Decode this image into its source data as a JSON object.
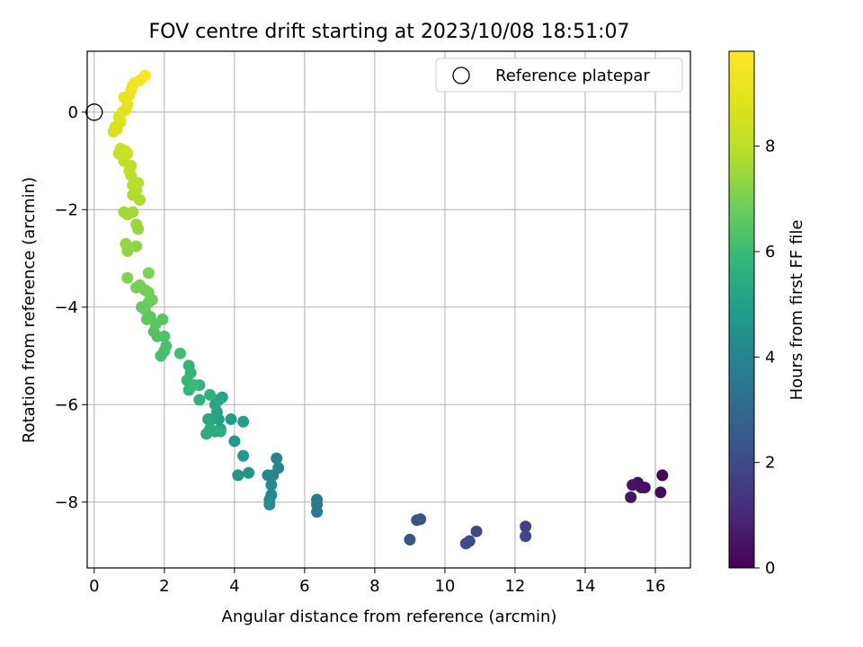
{
  "chart_data": {
    "type": "scatter",
    "title": "FOV centre drift starting at 2023/10/08 18:51:07",
    "xlabel": "Angular distance from reference (arcmin)",
    "ylabel": "Rotation from reference (arcmin)",
    "xlim": [
      -0.2,
      17
    ],
    "ylim": [
      -9.35,
      1.25
    ],
    "x_ticks": [
      0,
      2,
      4,
      6,
      8,
      10,
      12,
      14,
      16
    ],
    "y_ticks": [
      0,
      -2,
      -4,
      -6,
      -8
    ],
    "x_tick_labels": [
      "0",
      "2",
      "4",
      "6",
      "8",
      "10",
      "12",
      "14",
      "16"
    ],
    "y_tick_labels": [
      "0",
      "−2",
      "−4",
      "−6",
      "−8"
    ],
    "grid": true,
    "legend_position": "top-right",
    "legend": {
      "label": "Reference platepar",
      "marker": "open-circle"
    },
    "reference_point": {
      "x": 0,
      "y": 0
    },
    "colorbar": {
      "label": "Hours from first FF file",
      "colormap": "viridis",
      "range": [
        0,
        9.8
      ],
      "ticks": [
        0,
        2,
        4,
        6,
        8
      ],
      "tick_labels": [
        "0",
        "2",
        "4",
        "6",
        "8"
      ]
    },
    "points": [
      [
        16.2,
        -7.45,
        0.1
      ],
      [
        16.15,
        -7.8,
        0.25
      ],
      [
        15.5,
        -7.6,
        0.3
      ],
      [
        15.7,
        -7.7,
        0.35
      ],
      [
        15.6,
        -7.7,
        0.4
      ],
      [
        15.35,
        -7.65,
        0.45
      ],
      [
        15.3,
        -7.9,
        0.5
      ],
      [
        12.3,
        -8.5,
        1.8
      ],
      [
        12.3,
        -8.7,
        1.85
      ],
      [
        10.9,
        -8.6,
        1.95
      ],
      [
        10.7,
        -8.8,
        2.0
      ],
      [
        10.6,
        -8.85,
        2.05
      ],
      [
        9.3,
        -8.35,
        2.25
      ],
      [
        9.2,
        -8.37,
        2.3
      ],
      [
        9.0,
        -8.77,
        2.35
      ],
      [
        6.35,
        -7.95,
        3.5
      ],
      [
        6.35,
        -8.05,
        3.55
      ],
      [
        6.35,
        -8.2,
        3.6
      ],
      [
        5.2,
        -7.1,
        4.0
      ],
      [
        5.25,
        -7.3,
        4.05
      ],
      [
        5.1,
        -7.45,
        4.1
      ],
      [
        4.95,
        -7.45,
        4.15
      ],
      [
        5.05,
        -7.65,
        4.2
      ],
      [
        5.05,
        -7.85,
        4.25
      ],
      [
        5.0,
        -7.95,
        4.3
      ],
      [
        5.0,
        -8.05,
        4.35
      ],
      [
        4.4,
        -7.4,
        4.55
      ],
      [
        4.1,
        -7.45,
        4.6
      ],
      [
        4.25,
        -7.05,
        4.7
      ],
      [
        4.0,
        -6.75,
        4.8
      ],
      [
        4.25,
        -6.35,
        4.9
      ],
      [
        3.9,
        -6.3,
        4.95
      ],
      [
        3.6,
        -6.5,
        5.0
      ],
      [
        3.55,
        -6.3,
        5.05
      ],
      [
        3.5,
        -6.15,
        5.1
      ],
      [
        3.65,
        -5.85,
        5.15
      ],
      [
        3.55,
        -5.9,
        5.2
      ],
      [
        3.45,
        -6.0,
        5.25
      ],
      [
        3.35,
        -6.3,
        5.3
      ],
      [
        3.25,
        -6.3,
        5.35
      ],
      [
        3.45,
        -6.55,
        5.4
      ],
      [
        3.3,
        -6.5,
        5.45
      ],
      [
        3.2,
        -6.6,
        5.5
      ],
      [
        3.6,
        -6.55,
        5.55
      ],
      [
        3.3,
        -5.8,
        5.6
      ],
      [
        3.0,
        -5.9,
        5.65
      ],
      [
        3.0,
        -5.6,
        5.7
      ],
      [
        2.75,
        -5.35,
        5.75
      ],
      [
        2.7,
        -5.2,
        5.8
      ],
      [
        2.65,
        -5.5,
        5.85
      ],
      [
        2.7,
        -5.7,
        5.9
      ],
      [
        2.85,
        -5.6,
        5.95
      ],
      [
        2.45,
        -4.95,
        6.1
      ],
      [
        2.0,
        -4.9,
        6.15
      ],
      [
        1.9,
        -5.0,
        6.2
      ],
      [
        2.05,
        -4.8,
        6.25
      ],
      [
        2.0,
        -4.6,
        6.3
      ],
      [
        1.8,
        -4.6,
        6.35
      ],
      [
        1.7,
        -4.5,
        6.4
      ],
      [
        1.95,
        -4.25,
        6.45
      ],
      [
        1.6,
        -4.2,
        6.5
      ],
      [
        1.75,
        -4.35,
        6.55
      ],
      [
        1.5,
        -4.25,
        6.6
      ],
      [
        1.45,
        -4.05,
        6.65
      ],
      [
        1.35,
        -4.0,
        6.7
      ],
      [
        1.55,
        -3.9,
        6.75
      ],
      [
        1.65,
        -3.85,
        6.8
      ],
      [
        1.55,
        -3.7,
        6.85
      ],
      [
        1.45,
        -3.65,
        6.9
      ],
      [
        1.2,
        -3.6,
        6.95
      ],
      [
        1.3,
        -3.55,
        7.0
      ],
      [
        1.55,
        -3.3,
        7.05
      ],
      [
        0.95,
        -3.4,
        7.1
      ],
      [
        1.2,
        -2.75,
        7.3
      ],
      [
        0.95,
        -2.85,
        7.35
      ],
      [
        0.9,
        -2.7,
        7.4
      ],
      [
        1.25,
        -2.4,
        7.45
      ],
      [
        1.2,
        -2.3,
        7.5
      ],
      [
        0.95,
        -2.1,
        7.55
      ],
      [
        0.85,
        -2.05,
        7.6
      ],
      [
        1.1,
        -2.05,
        7.65
      ],
      [
        1.3,
        -1.8,
        7.7
      ],
      [
        1.1,
        -1.7,
        7.75
      ],
      [
        1.2,
        -1.6,
        7.8
      ],
      [
        1.1,
        -1.5,
        7.85
      ],
      [
        1.25,
        -1.45,
        7.9
      ],
      [
        1.05,
        -1.3,
        7.95
      ],
      [
        1.0,
        -1.2,
        8.0
      ],
      [
        1.05,
        -1.1,
        8.05
      ],
      [
        0.85,
        -1.0,
        8.1
      ],
      [
        0.7,
        -0.85,
        8.15
      ],
      [
        0.8,
        -0.9,
        8.2
      ],
      [
        0.9,
        -0.8,
        8.25
      ],
      [
        0.75,
        -0.75,
        8.3
      ],
      [
        0.95,
        -0.85,
        8.35
      ],
      [
        0.55,
        -0.4,
        8.6
      ],
      [
        0.65,
        -0.35,
        8.65
      ],
      [
        0.6,
        -0.3,
        8.7
      ],
      [
        0.75,
        -0.2,
        8.75
      ],
      [
        0.7,
        -0.1,
        8.8
      ],
      [
        0.8,
        0.0,
        8.85
      ],
      [
        0.9,
        0.05,
        8.9
      ],
      [
        0.95,
        0.15,
        8.95
      ],
      [
        0.85,
        0.3,
        9.0
      ],
      [
        1.0,
        0.35,
        9.1
      ],
      [
        1.05,
        0.45,
        9.2
      ],
      [
        1.1,
        0.55,
        9.3
      ],
      [
        1.15,
        0.6,
        9.4
      ],
      [
        1.3,
        0.65,
        9.5
      ],
      [
        1.45,
        0.75,
        9.7
      ]
    ]
  }
}
